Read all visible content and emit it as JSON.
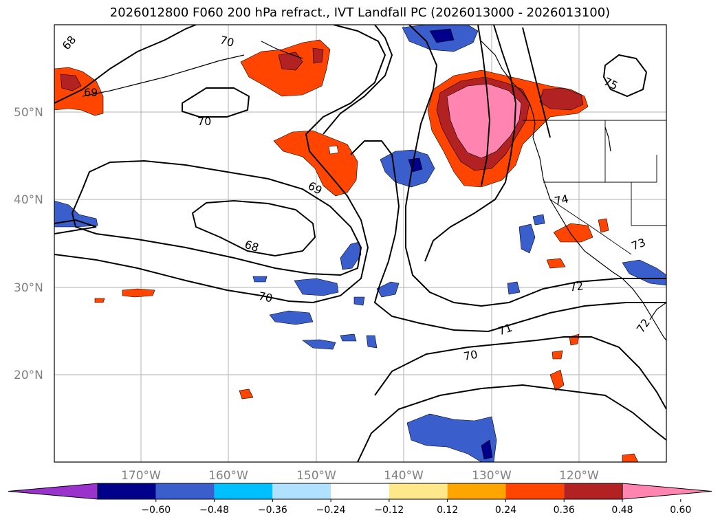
{
  "title": "2026012800 F060 200 hPa refract., IVT Landfall PC (2026013000 - 2026013100)",
  "map": {
    "lat_labels": [
      "50°N",
      "40°N",
      "30°N",
      "20°N"
    ],
    "lon_labels": [
      "170°W",
      "160°W",
      "150°W",
      "140°W",
      "130°W",
      "120°W"
    ],
    "contour_labels": [
      "68",
      "69",
      "70",
      "75",
      "70",
      "69",
      "74",
      "73",
      "68",
      "72",
      "70",
      "71",
      "72",
      "70"
    ],
    "contour_color": "#000000",
    "gridline_color": "#b0b0b0",
    "coastline_color": "#000000"
  },
  "colorbar": {
    "ticks": [
      "−0.60",
      "−0.48",
      "−0.36",
      "−0.24",
      "−0.12",
      "0.12",
      "0.24",
      "0.36",
      "0.48",
      "0.60"
    ],
    "colors": [
      "#9933cc",
      "#00008b",
      "#3a5fcd",
      "#00bfff",
      "#b0e2ff",
      "#ffffff",
      "#ffe88a",
      "#ffa500",
      "#ff4500",
      "#b22222",
      "#ff85b0"
    ]
  }
}
